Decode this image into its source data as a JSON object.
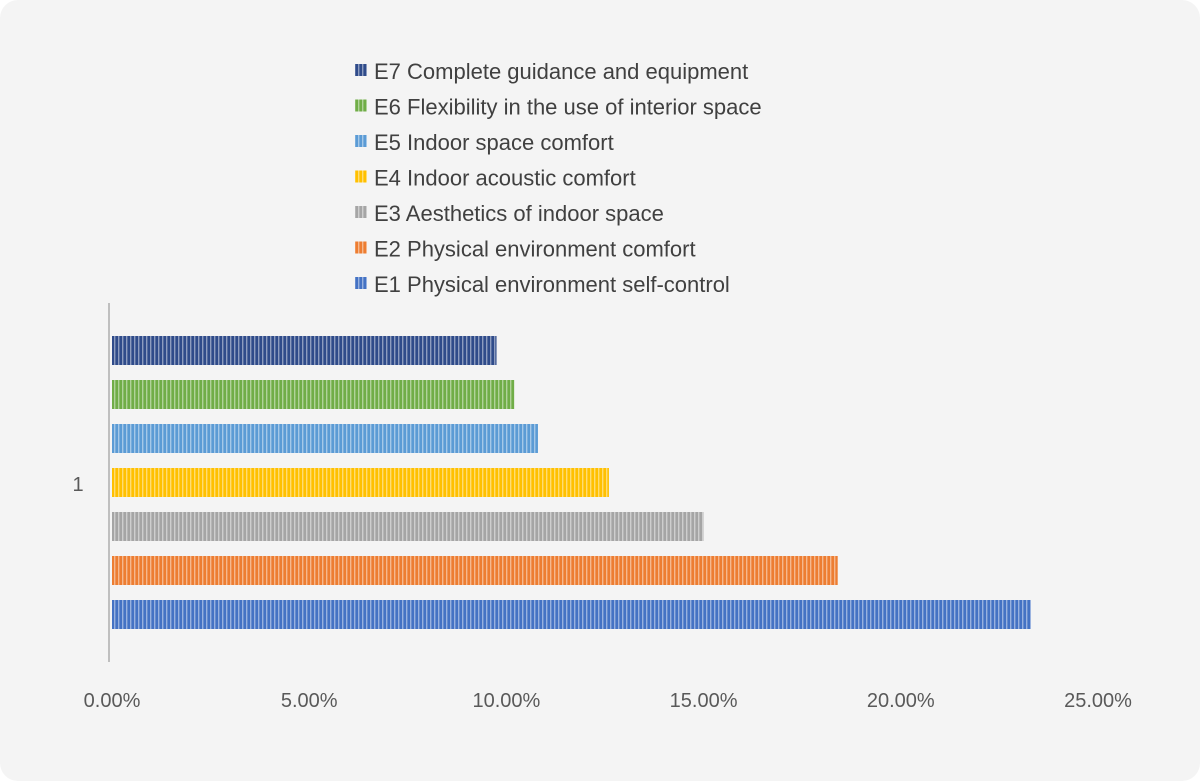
{
  "chart_data": {
    "type": "bar",
    "orientation": "horizontal",
    "categories": [
      "1"
    ],
    "series": [
      {
        "name": "E7 Complete guidance and equipment",
        "color": "#2f4b8a",
        "values": [
          9.75
        ]
      },
      {
        "name": "E6 Flexibility in the use of interior space",
        "color": "#70ad47",
        "values": [
          10.2
        ]
      },
      {
        "name": "E5 Indoor space comfort",
        "color": "#5b9bd5",
        "values": [
          10.8
        ]
      },
      {
        "name": "E4 Indoor acoustic comfort",
        "color": "#ffc000",
        "values": [
          12.6
        ]
      },
      {
        "name": "E3 Aesthetics of indoor space",
        "color": "#a5a5a5",
        "values": [
          15.0
        ]
      },
      {
        "name": "E2 Physical environment comfort",
        "color": "#ed7d31",
        "values": [
          18.4
        ]
      },
      {
        "name": "E1 Physical environment self-control",
        "color": "#4472c4",
        "values": [
          23.3
        ]
      }
    ],
    "xlim": [
      0,
      25
    ],
    "x_ticks": [
      "0.00%",
      "5.00%",
      "10.00%",
      "15.00%",
      "20.00%",
      "25.00%"
    ],
    "category_label": "1",
    "legend_position": "top",
    "grid": false,
    "pattern": "vertical-stripes"
  }
}
